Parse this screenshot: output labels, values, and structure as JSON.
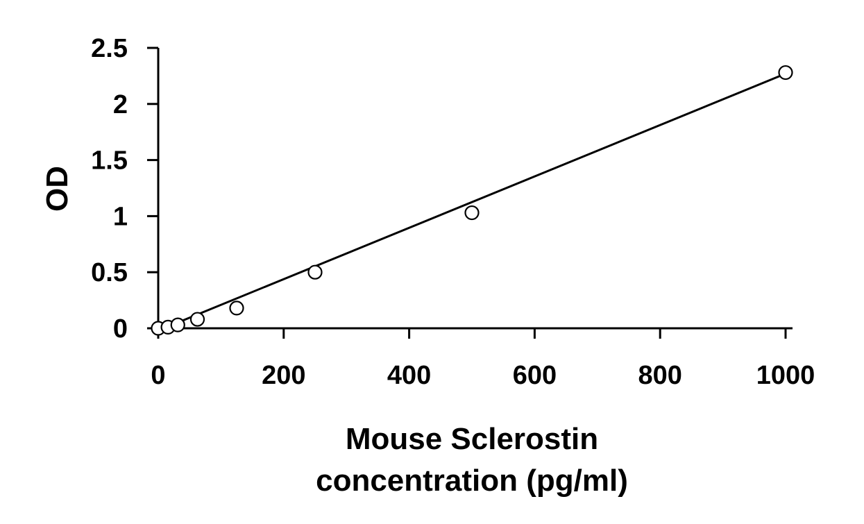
{
  "chart_data": {
    "type": "scatter",
    "title": "",
    "ylabel": "OD",
    "xlabel_lines": [
      "Mouse Sclerostin",
      "concentration (pg/ml)"
    ],
    "xlim": [
      0,
      1000
    ],
    "ylim": [
      0,
      2.5
    ],
    "x_ticks": [
      0,
      200,
      400,
      600,
      800,
      1000
    ],
    "x_tick_labels": [
      "0",
      "200",
      "400",
      "600",
      "800",
      "1000"
    ],
    "y_ticks": [
      0,
      0.5,
      1,
      1.5,
      2,
      2.5
    ],
    "y_tick_labels": [
      "0",
      "0.5",
      "1",
      "1.5",
      "2",
      "2.5"
    ],
    "grid": false,
    "legend": "none",
    "series": [
      {
        "marker": "open-circle",
        "x": [
          0,
          15.6,
          31.25,
          62.5,
          125,
          250,
          500,
          1000
        ],
        "y": [
          0.0,
          0.01,
          0.03,
          0.08,
          0.18,
          0.5,
          1.03,
          2.28
        ]
      }
    ],
    "trendline": {
      "type": "linear",
      "x": [
        0,
        1000
      ],
      "y": [
        -0.02,
        2.27
      ]
    },
    "colors": {
      "axis": "#000000",
      "marker_stroke": "#000000",
      "marker_fill": "#ffffff",
      "line": "#000000"
    }
  }
}
